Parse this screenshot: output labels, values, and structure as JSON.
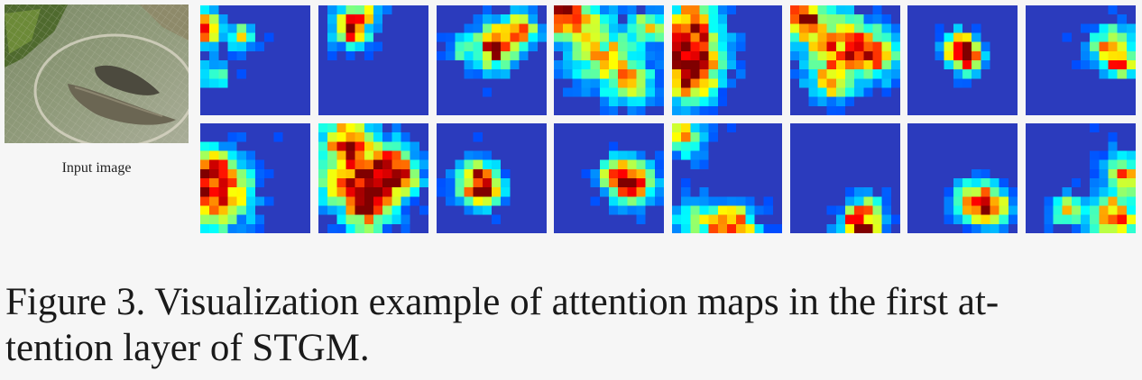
{
  "figure": {
    "input_label": "Input image",
    "caption_line1": "Figure 3.  Visualization example of attention maps in the first at-",
    "caption_line2": "tention layer of STGM."
  },
  "attention_maps": {
    "grid_size": 12,
    "colormap": "jet",
    "background": "#2b3bbd",
    "count": 16
  }
}
